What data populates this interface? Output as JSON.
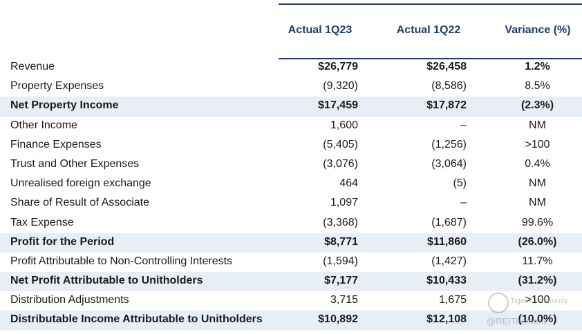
{
  "header": {
    "col1": "Actual 1Q23",
    "col2": "Actual 1Q22",
    "col3": "Variance (%)"
  },
  "rows": [
    {
      "label": "Revenue",
      "v1": "$26,779",
      "v2": "$26,458",
      "v3": "1.2%"
    },
    {
      "label": "Property Expenses",
      "v1": "(9,320)",
      "v2": "(8,586)",
      "v3": "8.5%"
    },
    {
      "label": "Net Property Income",
      "v1": "$17,459",
      "v2": "$17,872",
      "v3": "(2.3%)"
    },
    {
      "label": "Other Income",
      "v1": "1,600",
      "v2": "–",
      "v3": "NM"
    },
    {
      "label": "Finance Expenses",
      "v1": "(5,405)",
      "v2": "(1,256)",
      "v3": ">100"
    },
    {
      "label": "Trust and Other Expenses",
      "v1": "(3,076)",
      "v2": "(3,064)",
      "v3": "0.4%"
    },
    {
      "label": "Unrealised foreign exchange",
      "v1": "464",
      "v2": "(5)",
      "v3": "NM"
    },
    {
      "label": "Share of Result of Associate",
      "v1": "1,097",
      "v2": "–",
      "v3": "NM"
    },
    {
      "label": "Tax Expense",
      "v1": "(3,368)",
      "v2": "(1,687)",
      "v3": "99.6%"
    },
    {
      "label": "Profit for the Period",
      "v1": "$8,771",
      "v2": "$11,860",
      "v3": "(26.0%)"
    },
    {
      "label": "Profit Attributable to Non-Controlling Interests",
      "v1": "(1,594)",
      "v2": "(1,427)",
      "v3": "11.7%"
    },
    {
      "label": "Net Profit Attributable to Unitholders",
      "v1": "$7,177",
      "v2": "$10,433",
      "v3": "(31.2%)"
    },
    {
      "label": "Distribution Adjustments",
      "v1": "3,715",
      "v2": "1,675",
      "v3": ">100"
    },
    {
      "label": "Distributable Income Attributable to Unitholders",
      "v1": "$10,892",
      "v2": "$12,108",
      "v3": "(10.0%)"
    }
  ],
  "watermark": {
    "line1": "Tiger Community",
    "line2": "@REITirement"
  }
}
